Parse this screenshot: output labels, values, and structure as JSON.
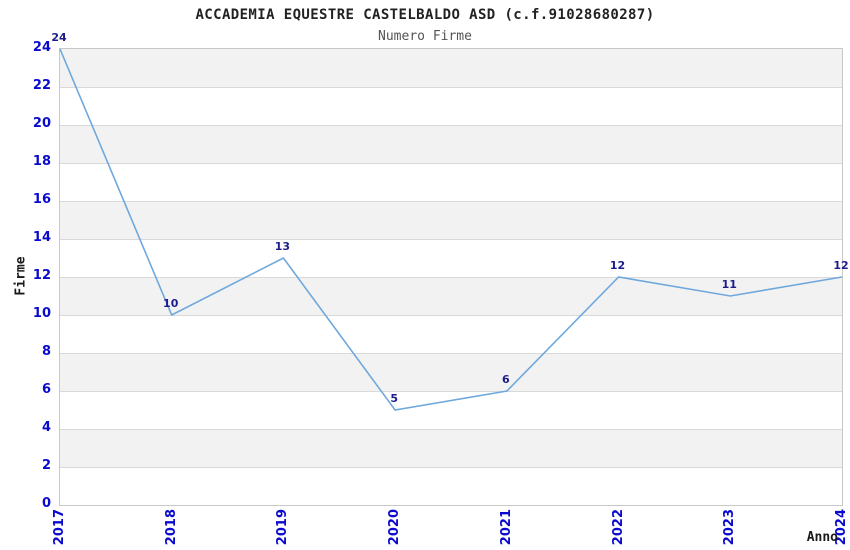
{
  "title": "ACCADEMIA EQUESTRE CASTELBALDO ASD (c.f.91028680287)",
  "subtitle": "Numero Firme",
  "chart_data": {
    "type": "line",
    "x": [
      2017,
      2018,
      2019,
      2020,
      2021,
      2022,
      2023,
      2024
    ],
    "values": [
      24,
      10,
      13,
      5,
      6,
      12,
      11,
      12
    ],
    "title": "ACCADEMIA EQUESTRE CASTELBALDO ASD (c.f.91028680287)",
    "subtitle": "Numero Firme",
    "xlabel": "Anno",
    "ylabel": "Firme",
    "ylim": [
      0,
      24
    ],
    "ytick_step": 2,
    "xticks": [
      "2017",
      "2018",
      "2019",
      "2020",
      "2021",
      "2022",
      "2023",
      "2024"
    ],
    "yticks": [
      "0",
      "2",
      "4",
      "6",
      "8",
      "10",
      "12",
      "14",
      "16",
      "18",
      "20",
      "22",
      "24"
    ],
    "grid": "horizontal-bands",
    "legend": "none",
    "data_labels_shown": true,
    "colors": {
      "line": "#6fa8dc",
      "tick_label": "#0a0ace",
      "data_label": "#1c1c8c",
      "band_fill": "#f2f2f2",
      "gridline": "#d9d9d9",
      "plot_border": "#c8c8c8",
      "title": "#222222",
      "subtitle": "#555555",
      "axis_label": "#1a1a1a",
      "background": "#ffffff"
    }
  }
}
